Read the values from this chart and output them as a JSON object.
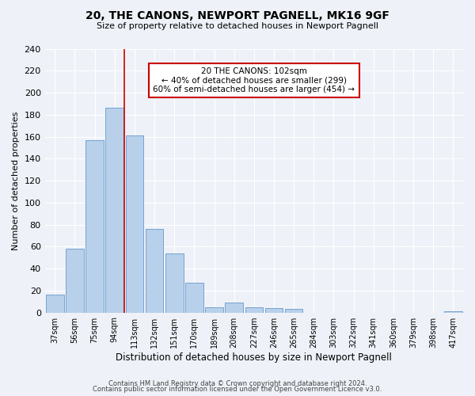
{
  "title": "20, THE CANONS, NEWPORT PAGNELL, MK16 9GF",
  "subtitle": "Size of property relative to detached houses in Newport Pagnell",
  "xlabel": "Distribution of detached houses by size in Newport Pagnell",
  "ylabel": "Number of detached properties",
  "bar_labels": [
    "37sqm",
    "56sqm",
    "75sqm",
    "94sqm",
    "113sqm",
    "132sqm",
    "151sqm",
    "170sqm",
    "189sqm",
    "208sqm",
    "227sqm",
    "246sqm",
    "265sqm",
    "284sqm",
    "303sqm",
    "322sqm",
    "341sqm",
    "360sqm",
    "379sqm",
    "398sqm",
    "417sqm"
  ],
  "bar_values": [
    16,
    58,
    157,
    186,
    161,
    76,
    54,
    27,
    5,
    9,
    5,
    4,
    3,
    0,
    0,
    0,
    0,
    0,
    0,
    0,
    1
  ],
  "bar_color": "#b8d0ea",
  "bar_edge_color": "#6699cc",
  "vline_x": 3.5,
  "vline_color": "#cc0000",
  "annotation_title": "20 THE CANONS: 102sqm",
  "annotation_line1": "← 40% of detached houses are smaller (299)",
  "annotation_line2": "60% of semi-detached houses are larger (454) →",
  "annotation_box_color": "#ffffff",
  "annotation_box_edge": "#cc0000",
  "ylim": [
    0,
    240
  ],
  "yticks": [
    0,
    20,
    40,
    60,
    80,
    100,
    120,
    140,
    160,
    180,
    200,
    220,
    240
  ],
  "footer1": "Contains HM Land Registry data © Crown copyright and database right 2024.",
  "footer2": "Contains public sector information licensed under the Open Government Licence v3.0.",
  "bg_color": "#eef2f8"
}
